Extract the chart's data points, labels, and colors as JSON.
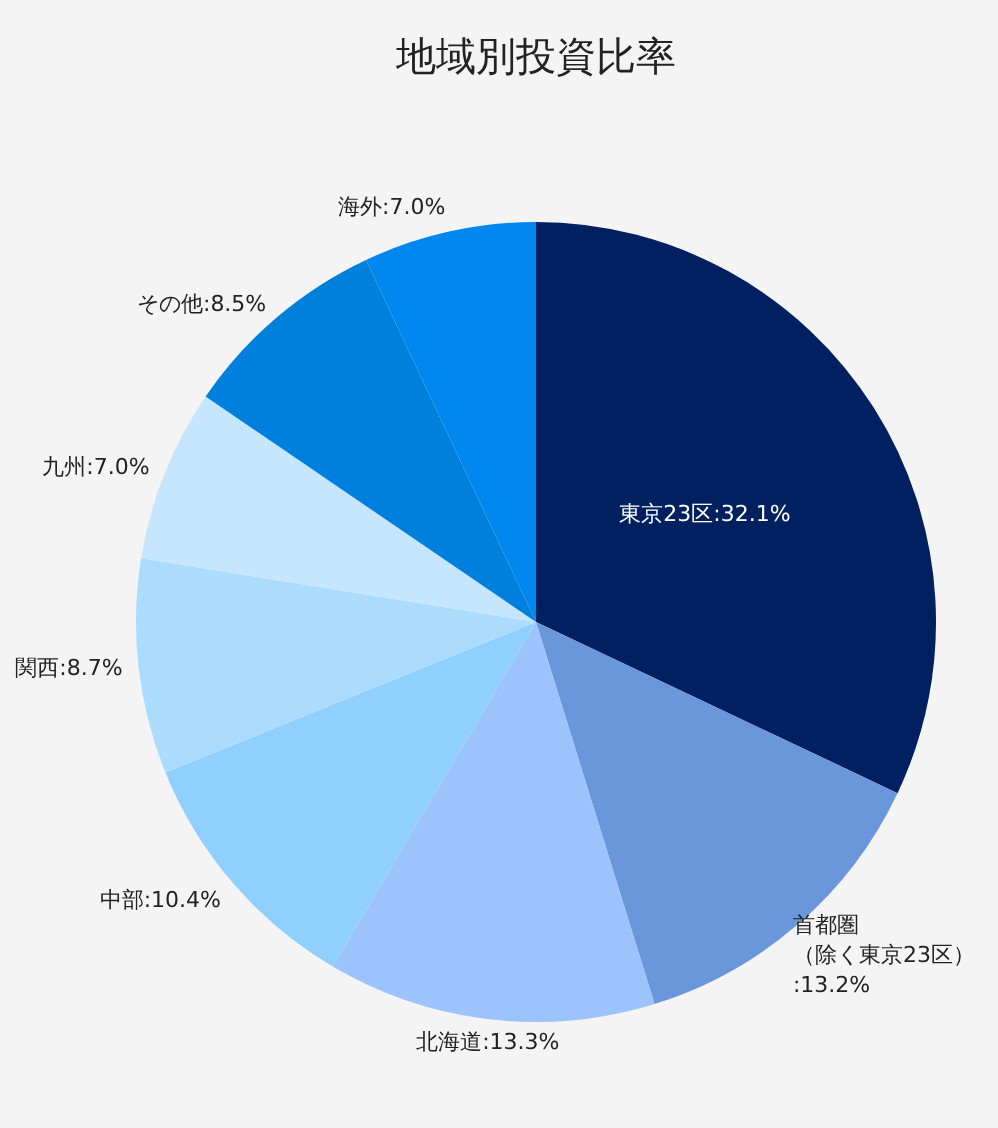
{
  "chart_data": {
    "type": "pie",
    "title": "地域別投資比率",
    "categories": [
      "東京23区",
      "首都圏（除く東京23区）",
      "北海道",
      "中部",
      "関西",
      "九州",
      "その他",
      "海外"
    ],
    "value_labels": [
      ":32.1%",
      ":13.2%",
      ":13.3%",
      ":10.4%",
      ":8.7%",
      ":7.0%",
      ":8.5%",
      ":7.0%"
    ],
    "values": [
      32.1,
      13.2,
      13.3,
      10.4,
      8.7,
      7.0,
      8.5,
      7.0
    ],
    "colors": [
      "#002060",
      "#6a96dc",
      "#9dc3fc",
      "#8fd0ff",
      "#abdcfd",
      "#c5e6fd",
      "#0080dd",
      "#0088f0"
    ],
    "legend": false
  }
}
